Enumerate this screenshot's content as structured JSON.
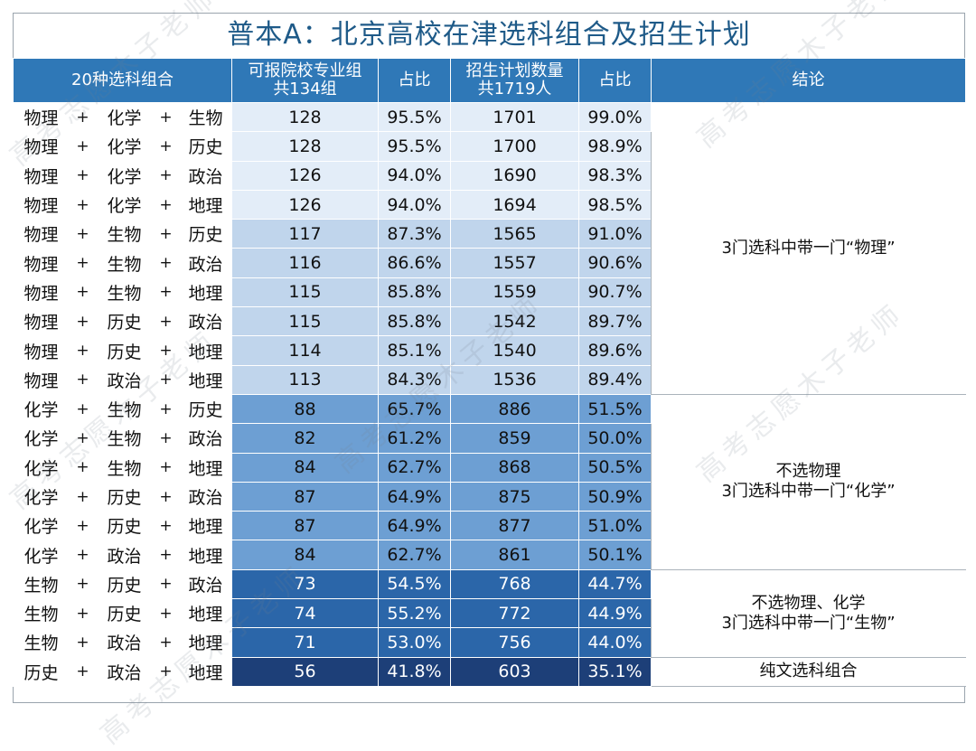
{
  "title": "普本A：北京高校在津选科组合及招生计划",
  "header": {
    "combo": "20种选科组合",
    "schools_line1": "可报院校专业组",
    "schools_line2": "共134组",
    "ratio1": "占比",
    "plan_line1": "招生计划数量",
    "plan_line2": "共1719人",
    "ratio2": "占比",
    "conclusion": "结论"
  },
  "plus": "+",
  "rows": [
    {
      "s1": "物理",
      "s2": "化学",
      "s3": "生物",
      "groups": "128",
      "ratio1": "95.5%",
      "plan": "1701",
      "ratio2": "99.0%"
    },
    {
      "s1": "物理",
      "s2": "化学",
      "s3": "历史",
      "groups": "128",
      "ratio1": "95.5%",
      "plan": "1700",
      "ratio2": "98.9%"
    },
    {
      "s1": "物理",
      "s2": "化学",
      "s3": "政治",
      "groups": "126",
      "ratio1": "94.0%",
      "plan": "1690",
      "ratio2": "98.3%"
    },
    {
      "s1": "物理",
      "s2": "化学",
      "s3": "地理",
      "groups": "126",
      "ratio1": "94.0%",
      "plan": "1694",
      "ratio2": "98.5%"
    },
    {
      "s1": "物理",
      "s2": "生物",
      "s3": "历史",
      "groups": "117",
      "ratio1": "87.3%",
      "plan": "1565",
      "ratio2": "91.0%"
    },
    {
      "s1": "物理",
      "s2": "生物",
      "s3": "政治",
      "groups": "116",
      "ratio1": "86.6%",
      "plan": "1557",
      "ratio2": "90.6%"
    },
    {
      "s1": "物理",
      "s2": "生物",
      "s3": "地理",
      "groups": "115",
      "ratio1": "85.8%",
      "plan": "1559",
      "ratio2": "90.7%"
    },
    {
      "s1": "物理",
      "s2": "历史",
      "s3": "政治",
      "groups": "115",
      "ratio1": "85.8%",
      "plan": "1542",
      "ratio2": "89.7%"
    },
    {
      "s1": "物理",
      "s2": "历史",
      "s3": "地理",
      "groups": "114",
      "ratio1": "85.1%",
      "plan": "1540",
      "ratio2": "89.6%"
    },
    {
      "s1": "物理",
      "s2": "政治",
      "s3": "地理",
      "groups": "113",
      "ratio1": "84.3%",
      "plan": "1536",
      "ratio2": "89.4%"
    },
    {
      "s1": "化学",
      "s2": "生物",
      "s3": "历史",
      "groups": "88",
      "ratio1": "65.7%",
      "plan": "886",
      "ratio2": "51.5%"
    },
    {
      "s1": "化学",
      "s2": "生物",
      "s3": "政治",
      "groups": "82",
      "ratio1": "61.2%",
      "plan": "859",
      "ratio2": "50.0%"
    },
    {
      "s1": "化学",
      "s2": "生物",
      "s3": "地理",
      "groups": "84",
      "ratio1": "62.7%",
      "plan": "868",
      "ratio2": "50.5%"
    },
    {
      "s1": "化学",
      "s2": "历史",
      "s3": "政治",
      "groups": "87",
      "ratio1": "64.9%",
      "plan": "875",
      "ratio2": "50.9%"
    },
    {
      "s1": "化学",
      "s2": "历史",
      "s3": "地理",
      "groups": "87",
      "ratio1": "64.9%",
      "plan": "877",
      "ratio2": "51.0%"
    },
    {
      "s1": "化学",
      "s2": "政治",
      "s3": "地理",
      "groups": "84",
      "ratio1": "62.7%",
      "plan": "861",
      "ratio2": "50.1%"
    },
    {
      "s1": "生物",
      "s2": "历史",
      "s3": "政治",
      "groups": "73",
      "ratio1": "54.5%",
      "plan": "768",
      "ratio2": "44.7%"
    },
    {
      "s1": "生物",
      "s2": "历史",
      "s3": "地理",
      "groups": "74",
      "ratio1": "55.2%",
      "plan": "772",
      "ratio2": "44.9%"
    },
    {
      "s1": "生物",
      "s2": "政治",
      "s3": "地理",
      "groups": "71",
      "ratio1": "53.0%",
      "plan": "756",
      "ratio2": "44.0%"
    },
    {
      "s1": "历史",
      "s2": "政治",
      "s3": "地理",
      "groups": "56",
      "ratio1": "41.8%",
      "plan": "603",
      "ratio2": "35.1%"
    }
  ],
  "conclusions": {
    "physics": "3门选科中带一门“物理”",
    "chem_line1": "不选物理",
    "chem_line2": "3门选科中带一门“化学”",
    "bio_line1": "不选物理、化学",
    "bio_line2": "3门选科中带一门“生物”",
    "arts": "纯文选科组合"
  },
  "watermark": "高考志愿木子老师",
  "colors": {
    "title": "#1e5a88",
    "header_bg": "#2f78b7",
    "group1": "#e3edf8",
    "group2": "#c0d5ec",
    "group3": "#6d9fd3",
    "group4": "#2b66a9",
    "group5": "#1d3f78"
  }
}
